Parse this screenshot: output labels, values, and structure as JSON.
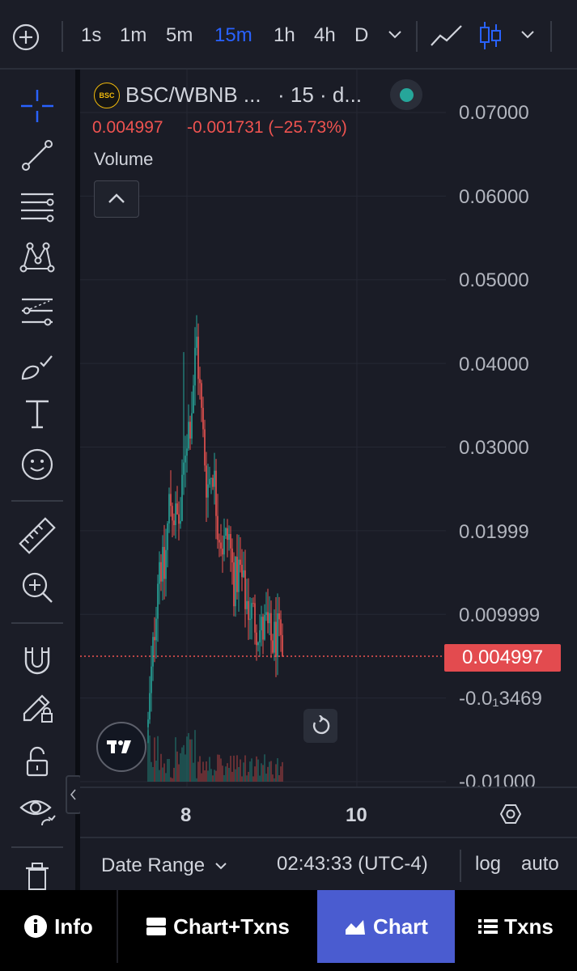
{
  "topbar": {
    "timeframes": [
      "1s",
      "1m",
      "5m",
      "15m",
      "1h",
      "4h",
      "D"
    ],
    "active_timeframe": "15m"
  },
  "legend": {
    "symbol": "BSC/WBNB ...",
    "interval": "· 15 · d...",
    "logo_text": "BSC",
    "price": "0.004997",
    "change": "-0.001731 (−25.73%)",
    "volume_label": "Volume"
  },
  "price_axis": {
    "labels": [
      "0.07000",
      "0.06000",
      "0.05000",
      "0.04000",
      "0.03000",
      "0.01999",
      "0.009999",
      "-0.0₁3469",
      "-0.01000"
    ],
    "current_price": "0.004997"
  },
  "time_axis": {
    "labels": [
      "8",
      "10"
    ]
  },
  "status_bar": {
    "date_range": "Date Range",
    "clock": "02:43:33 (UTC-4)",
    "log": "log",
    "auto": "auto"
  },
  "nav": {
    "info": "Info",
    "chart_txns": "Chart+Txns",
    "chart": "Chart",
    "txns": "Txns"
  },
  "colors": {
    "up": "#26a69a",
    "down": "#ef5350",
    "accent": "#2962ff",
    "nav_active": "#4a5cd0",
    "price_tag": "#e34b4f"
  },
  "chart_data": {
    "type": "candlestick",
    "pair": "BSC/WBNB",
    "interval": "15",
    "price_range": [
      -0.01,
      0.07
    ],
    "last_price": 0.004997,
    "approx_close_path": [
      -0.0035,
      0.0065,
      0.017,
      0.0145,
      0.024,
      0.0215,
      0.021,
      0.031,
      0.034,
      0.043,
      0.033,
      0.025,
      0.028,
      0.021,
      0.018,
      0.0195,
      0.0135,
      0.0155,
      0.012,
      0.0105,
      0.0092,
      0.0078,
      0.0085,
      0.0065,
      0.0075,
      0.005
    ]
  }
}
